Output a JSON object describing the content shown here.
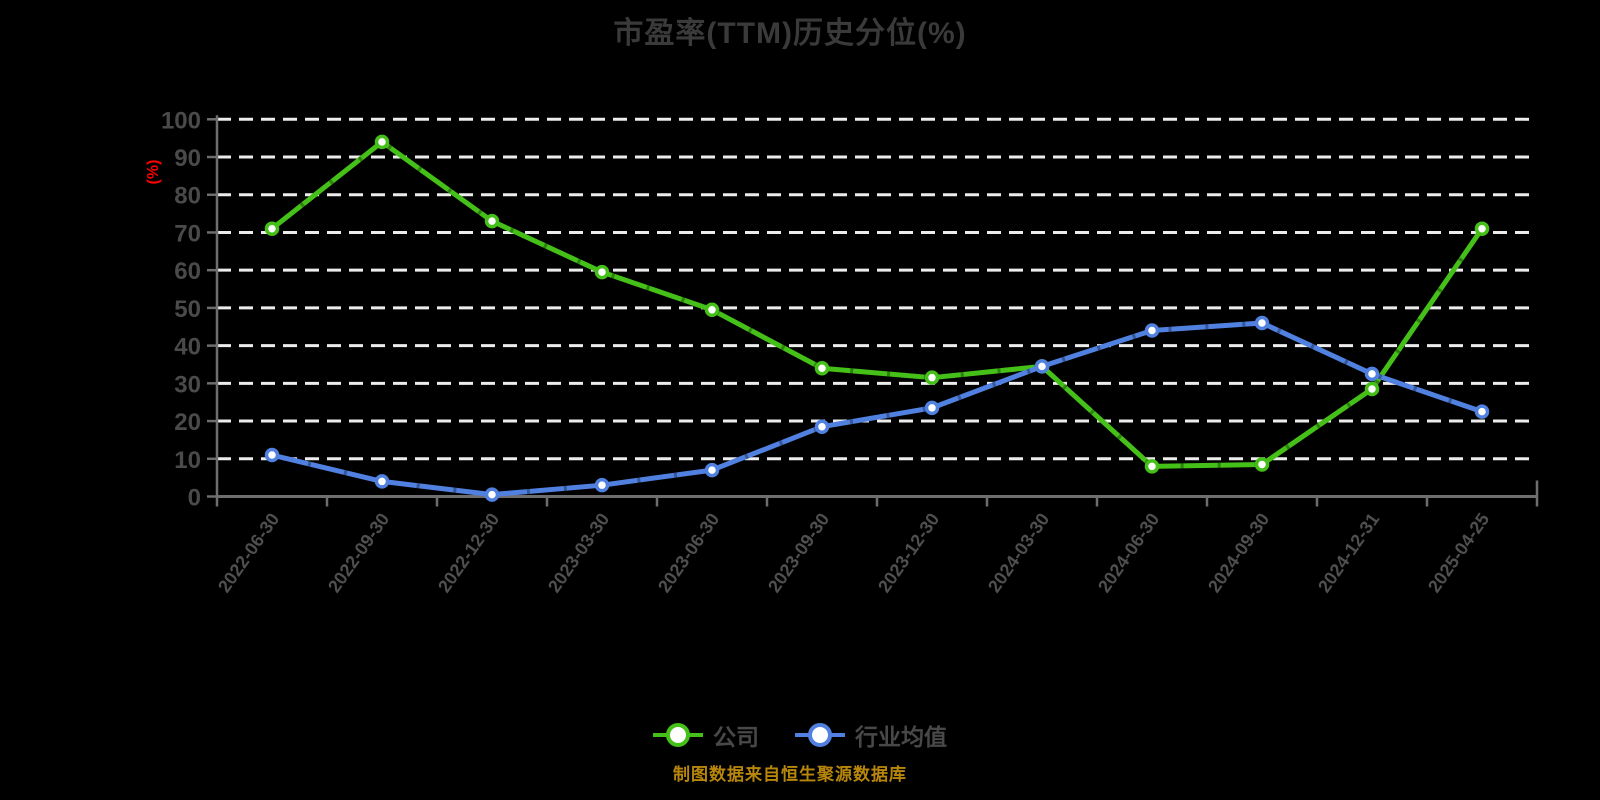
{
  "page": {
    "title": "市盈率(TTM)历史分位(%)",
    "footer": "制图数据来自恒生聚源数据库"
  },
  "colors": {
    "background": "#000000",
    "title": "#3a3a3a",
    "axis_line": "#6e6e6e",
    "y_tick_label": "#4a4a4a",
    "x_tick_label": "#4f4f4f",
    "gridline": "#ececec",
    "unit_label": "#ff0000",
    "legend_text": "#484848",
    "footer_text": "#b8860b",
    "series_company": "#44c018",
    "series_industry": "#5181e0",
    "marker_fill": "#ffffff"
  },
  "y_axis": {
    "unit_label": "(%)",
    "min": 0,
    "max": 100,
    "step": 10
  },
  "chart_data": {
    "type": "line",
    "title": "市盈率(TTM)历史分位(%)",
    "xlabel": "",
    "ylabel": "(%)",
    "ylim": [
      0,
      100
    ],
    "y_ticks": [
      0,
      10,
      20,
      30,
      40,
      50,
      60,
      70,
      80,
      90,
      100
    ],
    "grid": true,
    "gridline_style": "dashed",
    "legend_position": "bottom",
    "categories": [
      "2022-06-30",
      "2022-09-30",
      "2022-12-30",
      "2023-03-30",
      "2023-06-30",
      "2023-09-30",
      "2023-12-30",
      "2024-03-30",
      "2024-06-30",
      "2024-09-30",
      "2024-12-31",
      "2025-04-25"
    ],
    "series": [
      {
        "name": "公司",
        "color": "#44c018",
        "values": [
          71,
          94,
          73,
          59.5,
          49.5,
          34,
          31.5,
          34.5,
          8,
          8.5,
          28.5,
          71
        ]
      },
      {
        "name": "行业均值",
        "color": "#5181e0",
        "values": [
          11,
          4,
          0.5,
          3,
          7,
          18.5,
          23.5,
          34.5,
          44,
          46,
          32.5,
          22.5
        ]
      }
    ]
  }
}
